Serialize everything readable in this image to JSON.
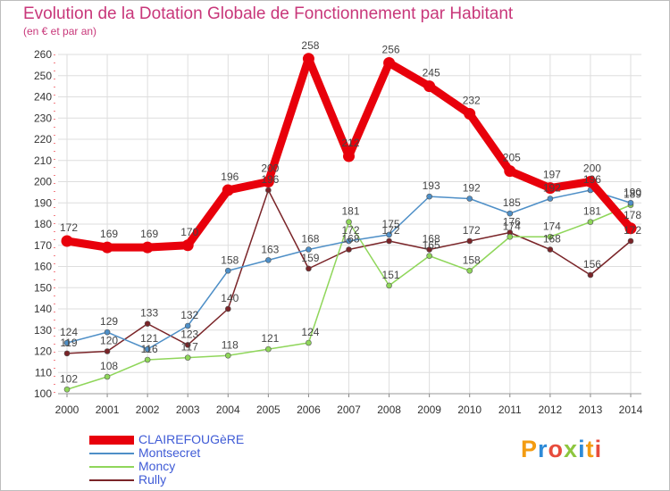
{
  "chart_data": {
    "type": "line",
    "title": "Evolution de la Dotation Globale de Fonctionnement par Habitant",
    "subtitle": "(en € et par an)",
    "x": [
      2000,
      2001,
      2002,
      2003,
      2004,
      2005,
      2006,
      2007,
      2008,
      2009,
      2010,
      2011,
      2012,
      2013,
      2014
    ],
    "ylim": [
      100,
      260
    ],
    "yticks": [
      100,
      110,
      120,
      130,
      140,
      150,
      160,
      170,
      180,
      190,
      200,
      210,
      220,
      230,
      240,
      250,
      260
    ],
    "grid": true,
    "legend_position": "bottom-left",
    "series": [
      {
        "name": "CLAIREFOUGèRE",
        "color": "#e8000b",
        "values": [
          172,
          169,
          169,
          170,
          196,
          200,
          258,
          212,
          256,
          245,
          232,
          205,
          197,
          200,
          178
        ]
      },
      {
        "name": "Montsecret",
        "color": "#4e8fc7",
        "values": [
          124,
          129,
          121,
          132,
          158,
          163,
          168,
          172,
          175,
          193,
          192,
          185,
          192,
          196,
          190
        ]
      },
      {
        "name": "Moncy",
        "color": "#8fd65a",
        "values": [
          102,
          108,
          116,
          117,
          118,
          121,
          124,
          181,
          151,
          165,
          158,
          174,
          174,
          181,
          189
        ]
      },
      {
        "name": "Rully",
        "color": "#7a2428",
        "values": [
          119,
          120,
          133,
          123,
          140,
          196,
          159,
          168,
          172,
          168,
          172,
          176,
          168,
          156,
          172
        ]
      }
    ]
  },
  "logo": {
    "text": "Proxiti"
  }
}
